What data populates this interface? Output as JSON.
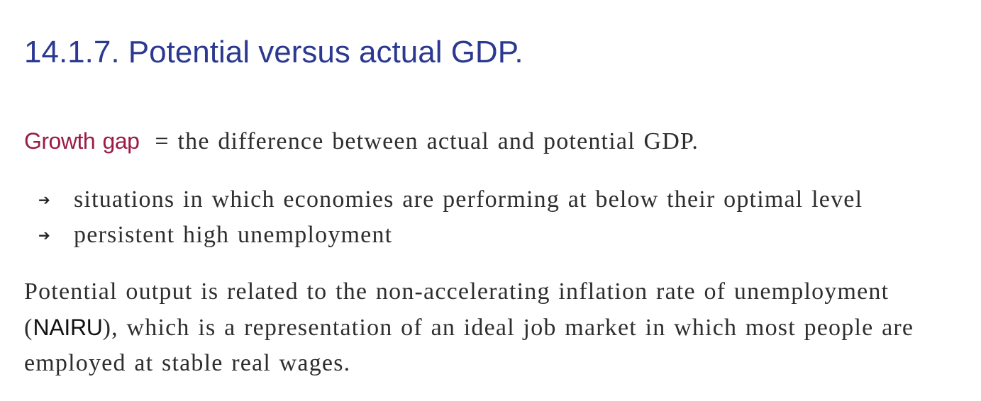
{
  "slide": {
    "title": "14.1.7. Potential versus actual GDP.",
    "definition": {
      "term": "Growth gap",
      "text": "= the difference between actual and potential GDP."
    },
    "bullets": [
      {
        "icon": "right-arrow-icon",
        "text": "situations in which economies are performing at below their optimal level"
      },
      {
        "icon": "right-arrow-icon",
        "text": "persistent high unemployment"
      }
    ],
    "paragraph": {
      "before": "Potential output is related to the non-accelerating inflation rate of unemployment (",
      "acronym": "NAIRU",
      "after": "), which is a representation of an ideal job market in which most people are employed at stable real wages."
    },
    "colors": {
      "title": "#2b3990",
      "term": "#9b1c45",
      "body": "#2e2e2e"
    }
  }
}
